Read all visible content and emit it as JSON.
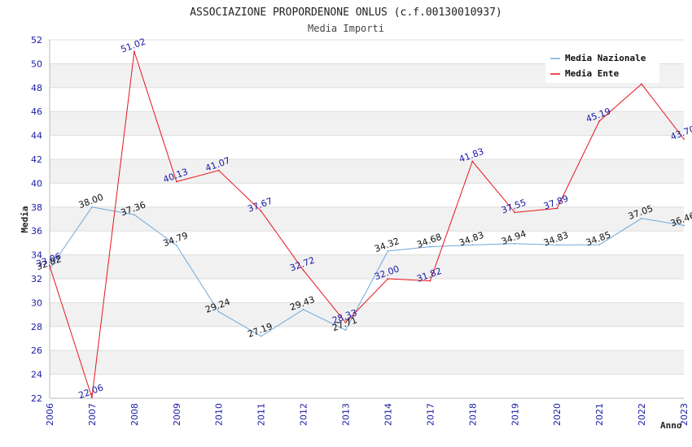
{
  "chart_data": {
    "type": "line",
    "title": "ASSOCIAZIONE PROPORDENONE ONLUS (c.f.00130010937)",
    "subtitle": "Media Importi",
    "xlabel": "Anno",
    "ylabel": "Media",
    "ylim": [
      22,
      52
    ],
    "ytick_step": 2,
    "grid": "horizontal alternating bands",
    "legend_position": "top-right",
    "categories": [
      "2006",
      "2007",
      "2008",
      "2009",
      "2010",
      "2011",
      "2012",
      "2013",
      "2014",
      "2017",
      "2018",
      "2019",
      "2020",
      "2021",
      "2022",
      "2023"
    ],
    "series": [
      {
        "name": "Media Nazionale",
        "color": "#6fa8dc",
        "label_color": "#111111",
        "values": [
          32.82,
          38.0,
          37.36,
          34.79,
          29.24,
          27.19,
          29.43,
          27.71,
          34.32,
          34.68,
          34.83,
          34.94,
          34.83,
          34.85,
          37.05,
          36.46
        ],
        "labels": [
          "32.82",
          "38.00",
          "37.36",
          "34.79",
          "29.24",
          "27.19",
          "29.43",
          "27.71",
          "34.32",
          "34.68",
          "34.83",
          "34.94",
          "34.83",
          "34.85",
          "37.05",
          "36.46"
        ]
      },
      {
        "name": "Media Ente",
        "color": "#e8141c",
        "label_color": "#1a1aa6",
        "values": [
          33.06,
          22.06,
          51.02,
          40.13,
          41.07,
          37.67,
          32.72,
          28.33,
          32.0,
          31.82,
          41.83,
          37.55,
          37.89,
          45.19,
          48.3,
          43.7
        ],
        "labels": [
          "33.06",
          "22.06",
          "51.02",
          "40.13",
          "41.07",
          "37.67",
          "32.72",
          "28.33",
          "32.00",
          "31.82",
          "41.83",
          "37.55",
          "37.89",
          "45.19",
          "",
          "43.70"
        ]
      }
    ]
  }
}
